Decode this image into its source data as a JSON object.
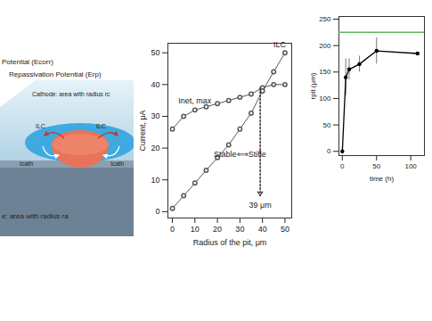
{
  "diagram": {
    "labels": {
      "corrosion_potential": "Potential (Ecorr)",
      "repassivation_potential": "Repassivation Potential (Erp)",
      "cathode": "Cathode: area with radius rc",
      "anode": "e: area with radius ra",
      "current_lc": "ILC",
      "current_cath": "Icath"
    }
  },
  "chart_data": [
    {
      "type": "line",
      "xlabel": "Radius of the pit, μm",
      "ylabel": "Current, μA",
      "x": [
        0,
        5,
        10,
        15,
        20,
        25,
        30,
        35,
        40,
        45,
        50
      ],
      "series": [
        {
          "name": "Inet, max",
          "color": "#555555",
          "marker": "circle",
          "values": [
            26,
            30,
            32,
            33,
            34,
            35,
            36,
            37,
            39,
            40,
            40
          ]
        },
        {
          "name": "ILC",
          "color": "#555555",
          "marker": "circle",
          "values": [
            1,
            5,
            9,
            13,
            17,
            21,
            26,
            31,
            38,
            44,
            50
          ]
        }
      ],
      "xlim": [
        -2,
        53
      ],
      "ylim": [
        -2,
        53
      ],
      "xticks": [
        0,
        10,
        20,
        30,
        40,
        50
      ],
      "yticks": [
        0,
        10,
        20,
        30,
        40,
        50
      ],
      "annotations": [
        {
          "text": "Stable⟺Stifle",
          "x": 30,
          "y": 18
        },
        {
          "text": "39 μm",
          "x": 39,
          "y": 2
        }
      ],
      "arrow": {
        "x": 39,
        "y1": 39,
        "y2": 5
      }
    },
    {
      "type": "line",
      "xlabel": "time (h)",
      "ylabel": "rpit (μm)",
      "x": [
        0,
        5,
        10,
        25,
        50,
        110
      ],
      "values": [
        0,
        140,
        155,
        165,
        190,
        185
      ],
      "errors": [
        0,
        35,
        20,
        15,
        25,
        0
      ],
      "color": "#000000",
      "marker": "circle",
      "xlim": [
        -5,
        120
      ],
      "ylim": [
        -8,
        255
      ],
      "xticks": [
        0,
        50,
        100
      ],
      "yticks": [
        0,
        50,
        100,
        150,
        200,
        250
      ],
      "reference_line": {
        "value": 225,
        "color": "#5cb85c"
      }
    }
  ]
}
